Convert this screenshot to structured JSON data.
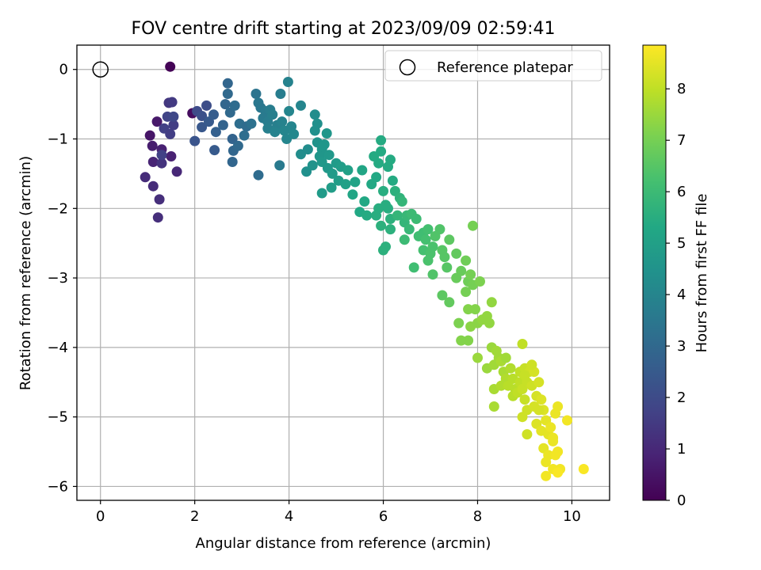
{
  "chart_data": {
    "type": "scatter",
    "title": "FOV centre drift starting at 2023/09/09 02:59:41",
    "xlabel": "Angular distance from reference (arcmin)",
    "ylabel": "Rotation from reference (arcmin)",
    "xlim": [
      -0.5,
      10.8
    ],
    "ylim": [
      -6.2,
      0.35
    ],
    "xticks": [
      0,
      2,
      4,
      6,
      8,
      10
    ],
    "yticks": [
      0,
      -1,
      -2,
      -3,
      -4,
      -5,
      -6
    ],
    "grid": true,
    "legend": {
      "placement": "top-right",
      "entries": [
        "Reference platepar"
      ]
    },
    "reference_point": {
      "x": 0,
      "y": 0,
      "label": "Reference platepar"
    },
    "colorbar": {
      "label": "Hours from first FF file",
      "colormap": "viridis",
      "range": [
        0,
        8.85
      ],
      "ticks": [
        0,
        1,
        2,
        3,
        4,
        5,
        6,
        7,
        8
      ]
    },
    "series": [
      {
        "points": [
          [
            1.48,
            0.04,
            0.05
          ],
          [
            1.95,
            -0.63,
            0.3
          ],
          [
            1.05,
            -0.95,
            0.5
          ],
          [
            1.2,
            -0.75,
            0.6
          ],
          [
            1.1,
            -1.1,
            0.7
          ],
          [
            1.3,
            -1.15,
            0.8
          ],
          [
            1.12,
            -1.33,
            0.9
          ],
          [
            1.5,
            -1.25,
            0.8
          ],
          [
            1.62,
            -1.47,
            1.0
          ],
          [
            0.95,
            -1.55,
            1.1
          ],
          [
            1.12,
            -1.68,
            1.1
          ],
          [
            1.25,
            -1.87,
            1.2
          ],
          [
            1.22,
            -2.13,
            1.2
          ],
          [
            1.3,
            -1.35,
            1.3
          ],
          [
            1.45,
            -0.48,
            1.4
          ],
          [
            1.52,
            -0.47,
            1.5
          ],
          [
            1.55,
            -0.8,
            1.6
          ],
          [
            1.35,
            -0.85,
            1.7
          ],
          [
            1.42,
            -0.68,
            1.8
          ],
          [
            1.55,
            -0.68,
            1.9
          ],
          [
            1.48,
            -0.93,
            1.6
          ],
          [
            1.3,
            -1.23,
            1.7
          ],
          [
            2.05,
            -0.6,
            2.0
          ],
          [
            2.25,
            -0.52,
            2.1
          ],
          [
            2.15,
            -0.67,
            2.2
          ],
          [
            2.0,
            -1.03,
            2.3
          ],
          [
            2.15,
            -0.83,
            2.4
          ],
          [
            2.3,
            -0.75,
            2.5
          ],
          [
            2.4,
            -0.65,
            2.6
          ],
          [
            2.45,
            -0.9,
            2.7
          ],
          [
            2.6,
            -0.8,
            2.8
          ],
          [
            2.42,
            -1.16,
            2.5
          ],
          [
            2.7,
            -0.2,
            2.9
          ],
          [
            2.7,
            -0.35,
            3.0
          ],
          [
            2.65,
            -0.5,
            2.9
          ],
          [
            2.75,
            -0.62,
            3.0
          ],
          [
            2.85,
            -0.52,
            3.1
          ],
          [
            2.8,
            -1.0,
            2.8
          ],
          [
            2.82,
            -1.17,
            2.9
          ],
          [
            2.92,
            -1.1,
            3.0
          ],
          [
            2.8,
            -1.33,
            2.9
          ],
          [
            2.95,
            -0.78,
            3.2
          ],
          [
            3.1,
            -0.82,
            3.1
          ],
          [
            3.05,
            -0.95,
            3.2
          ],
          [
            3.2,
            -0.78,
            3.3
          ],
          [
            3.3,
            -0.35,
            3.4
          ],
          [
            3.35,
            -0.48,
            3.5
          ],
          [
            3.4,
            -0.55,
            3.5
          ],
          [
            3.5,
            -0.6,
            3.6
          ],
          [
            3.45,
            -0.7,
            3.6
          ],
          [
            3.6,
            -0.58,
            3.7
          ],
          [
            3.55,
            -0.75,
            3.7
          ],
          [
            3.65,
            -0.65,
            3.8
          ],
          [
            3.55,
            -0.85,
            3.8
          ],
          [
            3.75,
            -0.8,
            3.8
          ],
          [
            3.7,
            -0.9,
            3.9
          ],
          [
            3.85,
            -0.75,
            3.9
          ],
          [
            3.9,
            -0.88,
            4.0
          ],
          [
            3.95,
            -1.0,
            4.0
          ],
          [
            3.82,
            -0.35,
            3.7
          ],
          [
            3.98,
            -0.18,
            3.9
          ],
          [
            4.0,
            -0.6,
            4.0
          ],
          [
            3.35,
            -1.52,
            3.1
          ],
          [
            3.8,
            -1.38,
            3.6
          ],
          [
            4.05,
            -0.82,
            4.0
          ],
          [
            4.1,
            -0.93,
            4.1
          ],
          [
            4.25,
            -0.52,
            4.0
          ],
          [
            4.25,
            -1.22,
            4.3
          ],
          [
            4.4,
            -1.15,
            4.3
          ],
          [
            4.37,
            -1.47,
            4.4
          ],
          [
            4.5,
            -1.38,
            4.5
          ],
          [
            4.55,
            -0.65,
            4.3
          ],
          [
            4.6,
            -0.78,
            4.4
          ],
          [
            4.55,
            -0.88,
            4.4
          ],
          [
            4.6,
            -1.05,
            4.5
          ],
          [
            4.7,
            -1.15,
            4.6
          ],
          [
            4.65,
            -1.25,
            4.6
          ],
          [
            4.8,
            -0.92,
            4.6
          ],
          [
            4.75,
            -1.08,
            4.6
          ],
          [
            4.85,
            -1.23,
            4.7
          ],
          [
            4.7,
            -1.33,
            4.7
          ],
          [
            4.82,
            -1.42,
            4.7
          ],
          [
            5.0,
            -1.35,
            4.8
          ],
          [
            4.92,
            -1.5,
            4.8
          ],
          [
            5.1,
            -1.4,
            4.9
          ],
          [
            5.25,
            -1.45,
            5.0
          ],
          [
            5.05,
            -1.6,
            4.9
          ],
          [
            5.2,
            -1.65,
            5.0
          ],
          [
            5.4,
            -1.62,
            5.1
          ],
          [
            5.35,
            -1.8,
            5.2
          ],
          [
            4.9,
            -1.7,
            4.9
          ],
          [
            4.7,
            -1.78,
            4.8
          ],
          [
            5.6,
            -1.9,
            5.3
          ],
          [
            5.5,
            -2.05,
            5.3
          ],
          [
            5.65,
            -2.1,
            5.4
          ],
          [
            5.75,
            -1.65,
            5.3
          ],
          [
            5.85,
            -1.55,
            5.3
          ],
          [
            5.9,
            -1.35,
            5.4
          ],
          [
            5.55,
            -1.45,
            5.2
          ],
          [
            5.8,
            -1.25,
            5.4
          ],
          [
            5.95,
            -1.18,
            5.4
          ],
          [
            5.95,
            -1.02,
            5.4
          ],
          [
            6.0,
            -1.75,
            5.5
          ],
          [
            6.05,
            -1.95,
            5.5
          ],
          [
            5.9,
            -2.0,
            5.5
          ],
          [
            6.1,
            -2.0,
            5.5
          ],
          [
            5.85,
            -2.1,
            5.5
          ],
          [
            6.15,
            -2.15,
            5.6
          ],
          [
            5.95,
            -2.25,
            5.6
          ],
          [
            6.05,
            -2.55,
            5.6
          ],
          [
            6.0,
            -2.6,
            5.6
          ],
          [
            6.15,
            -2.3,
            5.6
          ],
          [
            6.2,
            -1.6,
            5.4
          ],
          [
            6.1,
            -1.4,
            5.4
          ],
          [
            6.15,
            -1.3,
            5.4
          ],
          [
            6.25,
            -1.75,
            5.6
          ],
          [
            6.35,
            -1.85,
            5.7
          ],
          [
            6.3,
            -2.1,
            5.8
          ],
          [
            6.4,
            -1.9,
            5.8
          ],
          [
            6.45,
            -2.2,
            5.8
          ],
          [
            6.5,
            -2.1,
            5.9
          ],
          [
            6.45,
            -2.45,
            6.0
          ],
          [
            6.55,
            -2.3,
            5.9
          ],
          [
            6.6,
            -2.08,
            6.0
          ],
          [
            6.7,
            -2.15,
            6.0
          ],
          [
            6.75,
            -2.4,
            6.1
          ],
          [
            6.85,
            -2.35,
            6.1
          ],
          [
            6.9,
            -2.45,
            6.2
          ],
          [
            6.95,
            -2.3,
            6.2
          ],
          [
            6.65,
            -2.85,
            6.1
          ],
          [
            6.85,
            -2.6,
            6.2
          ],
          [
            6.95,
            -2.75,
            6.3
          ],
          [
            7.0,
            -2.65,
            6.3
          ],
          [
            7.05,
            -2.55,
            6.3
          ],
          [
            7.1,
            -2.4,
            6.4
          ],
          [
            7.2,
            -2.3,
            6.4
          ],
          [
            7.05,
            -2.95,
            6.4
          ],
          [
            7.25,
            -2.6,
            6.5
          ],
          [
            7.3,
            -2.7,
            6.5
          ],
          [
            7.35,
            -2.85,
            6.5
          ],
          [
            7.4,
            -2.45,
            6.6
          ],
          [
            7.25,
            -3.25,
            6.6
          ],
          [
            7.4,
            -3.35,
            6.7
          ],
          [
            7.55,
            -2.65,
            6.7
          ],
          [
            7.55,
            -3.0,
            6.8
          ],
          [
            7.65,
            -2.9,
            6.8
          ],
          [
            7.75,
            -2.75,
            6.9
          ],
          [
            7.8,
            -3.05,
            6.9
          ],
          [
            7.75,
            -3.2,
            7.0
          ],
          [
            7.85,
            -2.95,
            7.0
          ],
          [
            7.9,
            -2.25,
            7.0
          ],
          [
            7.9,
            -3.1,
            7.0
          ],
          [
            8.05,
            -3.05,
            7.1
          ],
          [
            7.8,
            -3.45,
            7.2
          ],
          [
            7.95,
            -3.45,
            7.2
          ],
          [
            8.0,
            -3.65,
            7.3
          ],
          [
            7.6,
            -3.65,
            7.1
          ],
          [
            7.8,
            -3.9,
            7.2
          ],
          [
            7.65,
            -3.9,
            7.2
          ],
          [
            7.85,
            -3.7,
            7.3
          ],
          [
            8.1,
            -3.6,
            7.4
          ],
          [
            8.2,
            -3.55,
            7.4
          ],
          [
            8.25,
            -3.65,
            7.4
          ],
          [
            8.3,
            -3.35,
            7.4
          ],
          [
            8.0,
            -4.15,
            7.5
          ],
          [
            8.2,
            -4.3,
            7.5
          ],
          [
            8.3,
            -4.0,
            7.5
          ],
          [
            8.4,
            -4.05,
            7.6
          ],
          [
            8.45,
            -4.15,
            7.6
          ],
          [
            8.35,
            -4.25,
            7.6
          ],
          [
            8.5,
            -4.2,
            7.7
          ],
          [
            8.55,
            -4.35,
            7.7
          ],
          [
            8.35,
            -4.6,
            7.7
          ],
          [
            8.5,
            -4.55,
            7.8
          ],
          [
            8.6,
            -4.45,
            7.8
          ],
          [
            8.7,
            -4.3,
            7.8
          ],
          [
            8.75,
            -4.45,
            7.9
          ],
          [
            8.65,
            -4.55,
            7.9
          ],
          [
            8.8,
            -4.6,
            7.9
          ],
          [
            8.75,
            -4.7,
            7.9
          ],
          [
            8.9,
            -4.5,
            8.0
          ],
          [
            8.85,
            -4.65,
            8.0
          ],
          [
            8.9,
            -4.35,
            8.0
          ],
          [
            9.0,
            -4.3,
            8.1
          ],
          [
            8.95,
            -4.6,
            8.1
          ],
          [
            9.05,
            -4.5,
            8.1
          ],
          [
            9.0,
            -4.75,
            8.1
          ],
          [
            9.05,
            -4.9,
            8.2
          ],
          [
            8.95,
            -5.0,
            8.2
          ],
          [
            8.35,
            -4.85,
            7.7
          ],
          [
            8.95,
            -3.95,
            8.0
          ],
          [
            9.1,
            -4.35,
            8.2
          ],
          [
            9.15,
            -4.55,
            8.2
          ],
          [
            9.2,
            -4.35,
            8.3
          ],
          [
            9.25,
            -4.7,
            8.3
          ],
          [
            9.3,
            -4.5,
            8.3
          ],
          [
            9.2,
            -4.85,
            8.3
          ],
          [
            9.35,
            -4.75,
            8.4
          ],
          [
            9.4,
            -4.9,
            8.4
          ],
          [
            9.25,
            -5.1,
            8.4
          ],
          [
            9.35,
            -5.2,
            8.5
          ],
          [
            9.45,
            -5.05,
            8.5
          ],
          [
            9.5,
            -5.25,
            8.5
          ],
          [
            9.4,
            -5.45,
            8.5
          ],
          [
            9.55,
            -5.15,
            8.6
          ],
          [
            9.6,
            -5.3,
            8.6
          ],
          [
            9.5,
            -5.55,
            8.6
          ],
          [
            9.45,
            -5.65,
            8.6
          ],
          [
            9.6,
            -5.75,
            8.7
          ],
          [
            9.65,
            -5.55,
            8.7
          ],
          [
            9.7,
            -5.5,
            8.7
          ],
          [
            9.75,
            -5.75,
            8.7
          ],
          [
            9.7,
            -4.85,
            8.6
          ],
          [
            9.65,
            -4.95,
            8.6
          ],
          [
            9.9,
            -5.05,
            8.7
          ],
          [
            9.05,
            -5.25,
            8.2
          ],
          [
            9.45,
            -5.85,
            8.7
          ],
          [
            9.7,
            -5.8,
            8.8
          ],
          [
            10.25,
            -5.75,
            8.8
          ],
          [
            9.0,
            -4.4,
            8.1
          ],
          [
            8.6,
            -4.15,
            7.6
          ],
          [
            9.3,
            -4.9,
            8.3
          ],
          [
            9.15,
            -4.25,
            8.2
          ],
          [
            9.6,
            -5.35,
            8.6
          ]
        ]
      }
    ]
  }
}
